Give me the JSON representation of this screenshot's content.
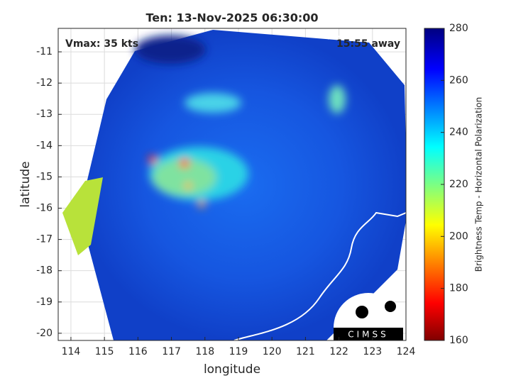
{
  "chart_data": {
    "type": "map",
    "title": "Ten: 13-Nov-2025 06:30:00",
    "xlabel": "longitude",
    "ylabel": "latitude",
    "annotations": [
      "Vmax: 35 kts",
      "15:55 away"
    ],
    "xlim": [
      113.62,
      124
    ],
    "ylim": [
      -20.23,
      -10.25
    ],
    "xticks": [
      114,
      115,
      116,
      117,
      118,
      119,
      120,
      121,
      122,
      123,
      124
    ],
    "yticks": [
      -20,
      -19,
      -18,
      -17,
      -16,
      -15,
      -14,
      -13,
      -12,
      -11
    ],
    "grid": true,
    "colorbar": {
      "label": "Brightness Temp - Horizontal Polarization",
      "lim": [
        160,
        280
      ],
      "ticks": [
        160,
        180,
        200,
        220,
        240,
        260,
        280
      ]
    },
    "logo": "CIMSS"
  }
}
